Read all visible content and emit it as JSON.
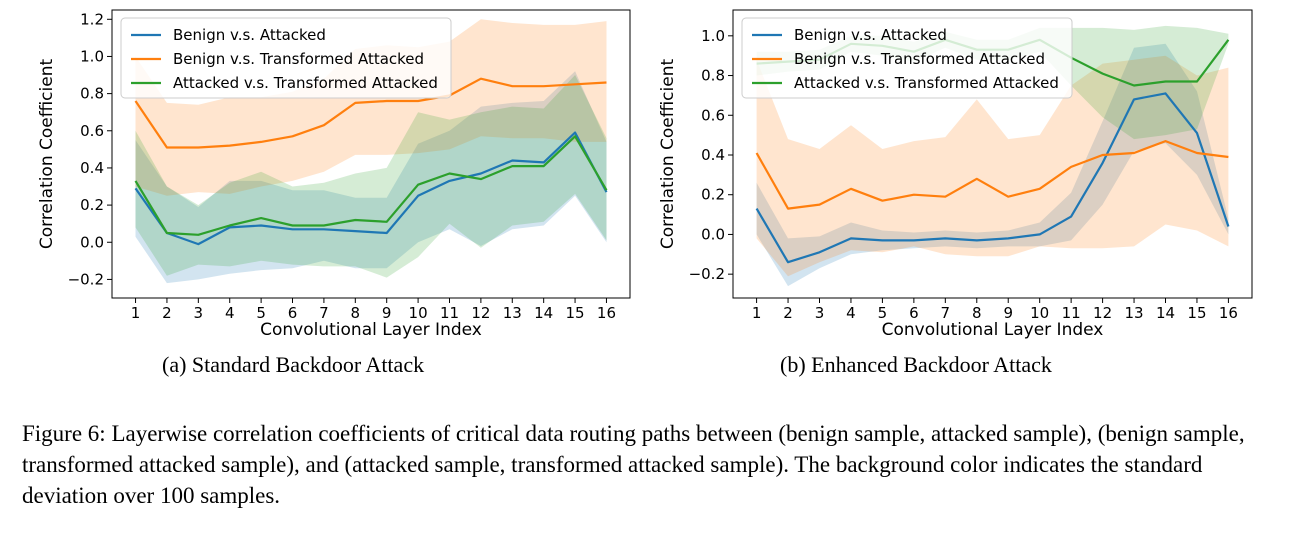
{
  "chart_data": [
    {
      "type": "line",
      "subcaption": "(a)  Standard Backdoor Attack",
      "xlabel": "Convolutional Layer Index",
      "ylabel": "Correlation Coefficient",
      "x": [
        1,
        2,
        3,
        4,
        5,
        6,
        7,
        8,
        9,
        10,
        11,
        12,
        13,
        14,
        15,
        16
      ],
      "ylim": [
        -0.3,
        1.25
      ],
      "yticks": [
        -0.2,
        0.0,
        0.2,
        0.4,
        0.6,
        0.8,
        1.0,
        1.2
      ],
      "ytick_labels": [
        "−0.2",
        "0.0",
        "0.2",
        "0.4",
        "0.6",
        "0.8",
        "1.0",
        "1.2"
      ],
      "legend_position": "upper-left",
      "series": [
        {
          "name": "Benign v.s. Attacked",
          "color": "#1f77b4",
          "values": [
            0.29,
            0.05,
            -0.01,
            0.08,
            0.09,
            0.07,
            0.07,
            0.06,
            0.05,
            0.25,
            0.33,
            0.37,
            0.44,
            0.43,
            0.59,
            0.27
          ],
          "lower": [
            0.03,
            -0.22,
            -0.2,
            -0.17,
            -0.15,
            -0.14,
            -0.1,
            -0.14,
            -0.14,
            0.0,
            0.07,
            -0.02,
            0.07,
            0.09,
            0.25,
            0.0
          ],
          "upper": [
            0.55,
            0.3,
            0.19,
            0.33,
            0.33,
            0.28,
            0.28,
            0.24,
            0.24,
            0.53,
            0.6,
            0.73,
            0.75,
            0.76,
            0.92,
            0.54
          ]
        },
        {
          "name": "Benign v.s. Transformed Attacked",
          "color": "#ff7f0e",
          "values": [
            0.76,
            0.51,
            0.51,
            0.52,
            0.54,
            0.57,
            0.63,
            0.75,
            0.76,
            0.76,
            0.79,
            0.88,
            0.84,
            0.84,
            0.85,
            0.86
          ],
          "lower": [
            0.3,
            0.25,
            0.27,
            0.26,
            0.3,
            0.33,
            0.38,
            0.47,
            0.47,
            0.48,
            0.5,
            0.57,
            0.56,
            0.56,
            0.54,
            0.54
          ],
          "upper": [
            1.0,
            0.75,
            0.74,
            0.78,
            0.78,
            0.81,
            0.88,
            1.04,
            1.06,
            1.05,
            1.08,
            1.2,
            1.18,
            1.17,
            1.17,
            1.19
          ]
        },
        {
          "name": "Attacked v.s. Transformed Attacked",
          "color": "#2ca02c",
          "values": [
            0.33,
            0.05,
            0.04,
            0.09,
            0.13,
            0.09,
            0.09,
            0.12,
            0.11,
            0.31,
            0.37,
            0.34,
            0.41,
            0.41,
            0.57,
            0.28
          ],
          "lower": [
            0.08,
            -0.18,
            -0.12,
            -0.13,
            -0.1,
            -0.12,
            -0.13,
            -0.13,
            -0.19,
            -0.08,
            0.1,
            -0.03,
            0.09,
            0.11,
            0.26,
            0.01
          ],
          "upper": [
            0.6,
            0.3,
            0.2,
            0.32,
            0.38,
            0.3,
            0.32,
            0.37,
            0.4,
            0.7,
            0.66,
            0.7,
            0.73,
            0.72,
            0.9,
            0.56
          ]
        }
      ]
    },
    {
      "type": "line",
      "subcaption": "(b)  Enhanced Backdoor Attack",
      "xlabel": "Convolutional Layer Index",
      "ylabel": "Correlation Coefficient",
      "x": [
        1,
        2,
        3,
        4,
        5,
        6,
        7,
        8,
        9,
        10,
        11,
        12,
        13,
        14,
        15,
        16
      ],
      "ylim": [
        -0.32,
        1.13
      ],
      "yticks": [
        -0.2,
        0.0,
        0.2,
        0.4,
        0.6,
        0.8,
        1.0
      ],
      "ytick_labels": [
        "−0.2",
        "0.0",
        "0.2",
        "0.4",
        "0.6",
        "0.8",
        "1.0"
      ],
      "legend_position": "upper-left",
      "series": [
        {
          "name": "Benign v.s. Attacked",
          "color": "#1f77b4",
          "values": [
            0.13,
            -0.14,
            -0.09,
            -0.02,
            -0.03,
            -0.03,
            -0.02,
            -0.03,
            -0.02,
            0.0,
            0.09,
            0.36,
            0.68,
            0.71,
            0.51,
            0.04
          ],
          "lower": [
            0.0,
            -0.26,
            -0.17,
            -0.1,
            -0.08,
            -0.07,
            -0.06,
            -0.07,
            -0.06,
            -0.06,
            -0.03,
            0.15,
            0.42,
            0.46,
            0.3,
            0.0
          ],
          "upper": [
            0.26,
            -0.02,
            -0.01,
            0.06,
            0.02,
            0.01,
            0.02,
            0.01,
            0.02,
            0.06,
            0.21,
            0.57,
            0.94,
            0.96,
            0.72,
            0.08
          ]
        },
        {
          "name": "Benign v.s. Transformed Attacked",
          "color": "#ff7f0e",
          "values": [
            0.41,
            0.13,
            0.15,
            0.23,
            0.17,
            0.2,
            0.19,
            0.28,
            0.19,
            0.23,
            0.34,
            0.4,
            0.41,
            0.47,
            0.41,
            0.39
          ],
          "lower": [
            -0.02,
            -0.21,
            -0.14,
            -0.08,
            -0.09,
            -0.06,
            -0.1,
            -0.11,
            -0.11,
            -0.06,
            -0.07,
            -0.07,
            -0.06,
            0.05,
            0.02,
            -0.06
          ],
          "upper": [
            0.88,
            0.48,
            0.43,
            0.55,
            0.43,
            0.47,
            0.49,
            0.68,
            0.48,
            0.5,
            0.75,
            0.86,
            0.88,
            0.9,
            0.8,
            0.84
          ]
        },
        {
          "name": "Attacked v.s. Transformed Attacked",
          "color": "#2ca02c",
          "values": [
            0.86,
            0.87,
            0.88,
            0.96,
            0.95,
            0.92,
            0.98,
            0.93,
            0.93,
            0.98,
            0.89,
            0.81,
            0.75,
            0.77,
            0.77,
            0.98
          ],
          "lower": [
            0.8,
            0.82,
            0.83,
            0.92,
            0.9,
            0.87,
            0.94,
            0.88,
            0.88,
            0.92,
            0.75,
            0.59,
            0.48,
            0.5,
            0.53,
            0.96
          ],
          "upper": [
            0.92,
            0.92,
            0.93,
            1.0,
            1.0,
            0.97,
            1.02,
            0.98,
            0.98,
            1.04,
            1.04,
            1.04,
            1.03,
            1.05,
            1.04,
            1.01
          ]
        }
      ]
    }
  ],
  "caption": "Figure 6: Layerwise correlation coefficients of critical data routing paths between (benign sample, attacked sample), (benign sample, transformed attacked sample), and (attacked sample, transformed attacked sample). The background color indicates the standard deviation over 100 samples."
}
